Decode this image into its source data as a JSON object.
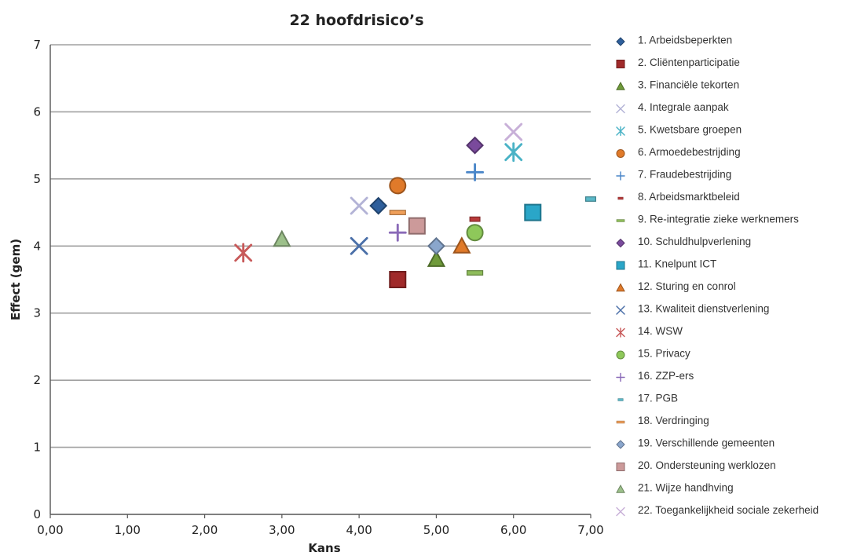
{
  "chart_data": {
    "type": "scatter",
    "title": "22 hoofdrisico’s",
    "xlabel": "Kans",
    "ylabel": "Effect (gem)",
    "xlim": [
      0,
      7
    ],
    "ylim": [
      0,
      7
    ],
    "xticks": [
      "0,00",
      "1,00",
      "2,00",
      "3,00",
      "4,00",
      "5,00",
      "6,00",
      "7,00"
    ],
    "yticks": [
      "0",
      "1",
      "2",
      "3",
      "4",
      "5",
      "6",
      "7"
    ],
    "grid": "horizontal",
    "legend_position": "right",
    "series": [
      {
        "name": "1. Arbeidsbeperkten",
        "marker": "diamond",
        "color": "#2e5f9c",
        "points": [
          [
            4.25,
            4.6
          ]
        ]
      },
      {
        "name": "2. Cliëntenparticipatie",
        "marker": "square",
        "color": "#a02a2a",
        "points": [
          [
            4.5,
            3.5
          ]
        ]
      },
      {
        "name": "3. Financiële tekorten",
        "marker": "triangle",
        "color": "#6f9a3a",
        "points": [
          [
            5.0,
            3.8
          ]
        ]
      },
      {
        "name": "4. Integrale aanpak",
        "marker": "x",
        "color": "#b3b3d6",
        "points": [
          [
            4.0,
            4.6
          ]
        ]
      },
      {
        "name": "5. Kwetsbare groepen",
        "marker": "star",
        "color": "#4bb3c6",
        "points": [
          [
            6.0,
            5.4
          ]
        ]
      },
      {
        "name": "6. Armoedebestrijding",
        "marker": "circle",
        "color": "#e07a2a",
        "points": [
          [
            4.5,
            4.9
          ]
        ]
      },
      {
        "name": "7. Fraudebestrijding",
        "marker": "plus",
        "color": "#4a86c8",
        "points": [
          [
            5.5,
            5.1
          ]
        ]
      },
      {
        "name": "8. Arbeidsmarktbeleid",
        "marker": "dash",
        "color": "#b83a3a",
        "points": [
          [
            5.5,
            4.4
          ]
        ]
      },
      {
        "name": "9. Re-integratie zieke werknemers",
        "marker": "bar",
        "color": "#8ebc5a",
        "points": [
          [
            5.5,
            3.6
          ]
        ]
      },
      {
        "name": "10. Schuldhulpverlening",
        "marker": "diamond",
        "color": "#7a4a9c",
        "points": [
          [
            5.5,
            5.5
          ]
        ]
      },
      {
        "name": "11. Knelpunt ICT",
        "marker": "square",
        "color": "#2aa6c8",
        "points": [
          [
            6.25,
            4.5
          ]
        ]
      },
      {
        "name": "12. Sturing en conrol",
        "marker": "triangle",
        "color": "#e07a2a",
        "points": [
          [
            5.33,
            4.0
          ]
        ]
      },
      {
        "name": "13. Kwaliteit dienstverlening",
        "marker": "x",
        "color": "#4a6fa8",
        "points": [
          [
            4.0,
            4.0
          ]
        ]
      },
      {
        "name": "14. WSW",
        "marker": "star",
        "color": "#c85a5a",
        "points": [
          [
            2.5,
            3.9
          ]
        ]
      },
      {
        "name": "15. Privacy",
        "marker": "circle",
        "color": "#8ec85a",
        "points": [
          [
            5.5,
            4.2
          ]
        ]
      },
      {
        "name": "16. ZZP-ers",
        "marker": "plus",
        "color": "#8a6ab8",
        "points": [
          [
            4.5,
            4.2
          ]
        ]
      },
      {
        "name": "17. PGB",
        "marker": "dash",
        "color": "#5ab8c8",
        "points": [
          [
            7.0,
            4.7
          ]
        ]
      },
      {
        "name": "18. Verdringing",
        "marker": "bar",
        "color": "#f0a05a",
        "points": [
          [
            4.5,
            4.5
          ]
        ]
      },
      {
        "name": "19. Verschillende gemeenten",
        "marker": "diamond",
        "color": "#8aa6cc",
        "points": [
          [
            5.0,
            4.0
          ]
        ]
      },
      {
        "name": "20. Ondersteuning werklozen",
        "marker": "square",
        "color": "#cc9a9a",
        "points": [
          [
            4.75,
            4.3
          ]
        ]
      },
      {
        "name": "21. Wijze handhving",
        "marker": "triangle",
        "color": "#9cc08a",
        "points": [
          [
            3.0,
            4.1
          ]
        ]
      },
      {
        "name": "22. Toegankelijkheid sociale zekerheid",
        "marker": "x",
        "color": "#c8b0d8",
        "points": [
          [
            6.0,
            5.7
          ]
        ]
      }
    ]
  }
}
